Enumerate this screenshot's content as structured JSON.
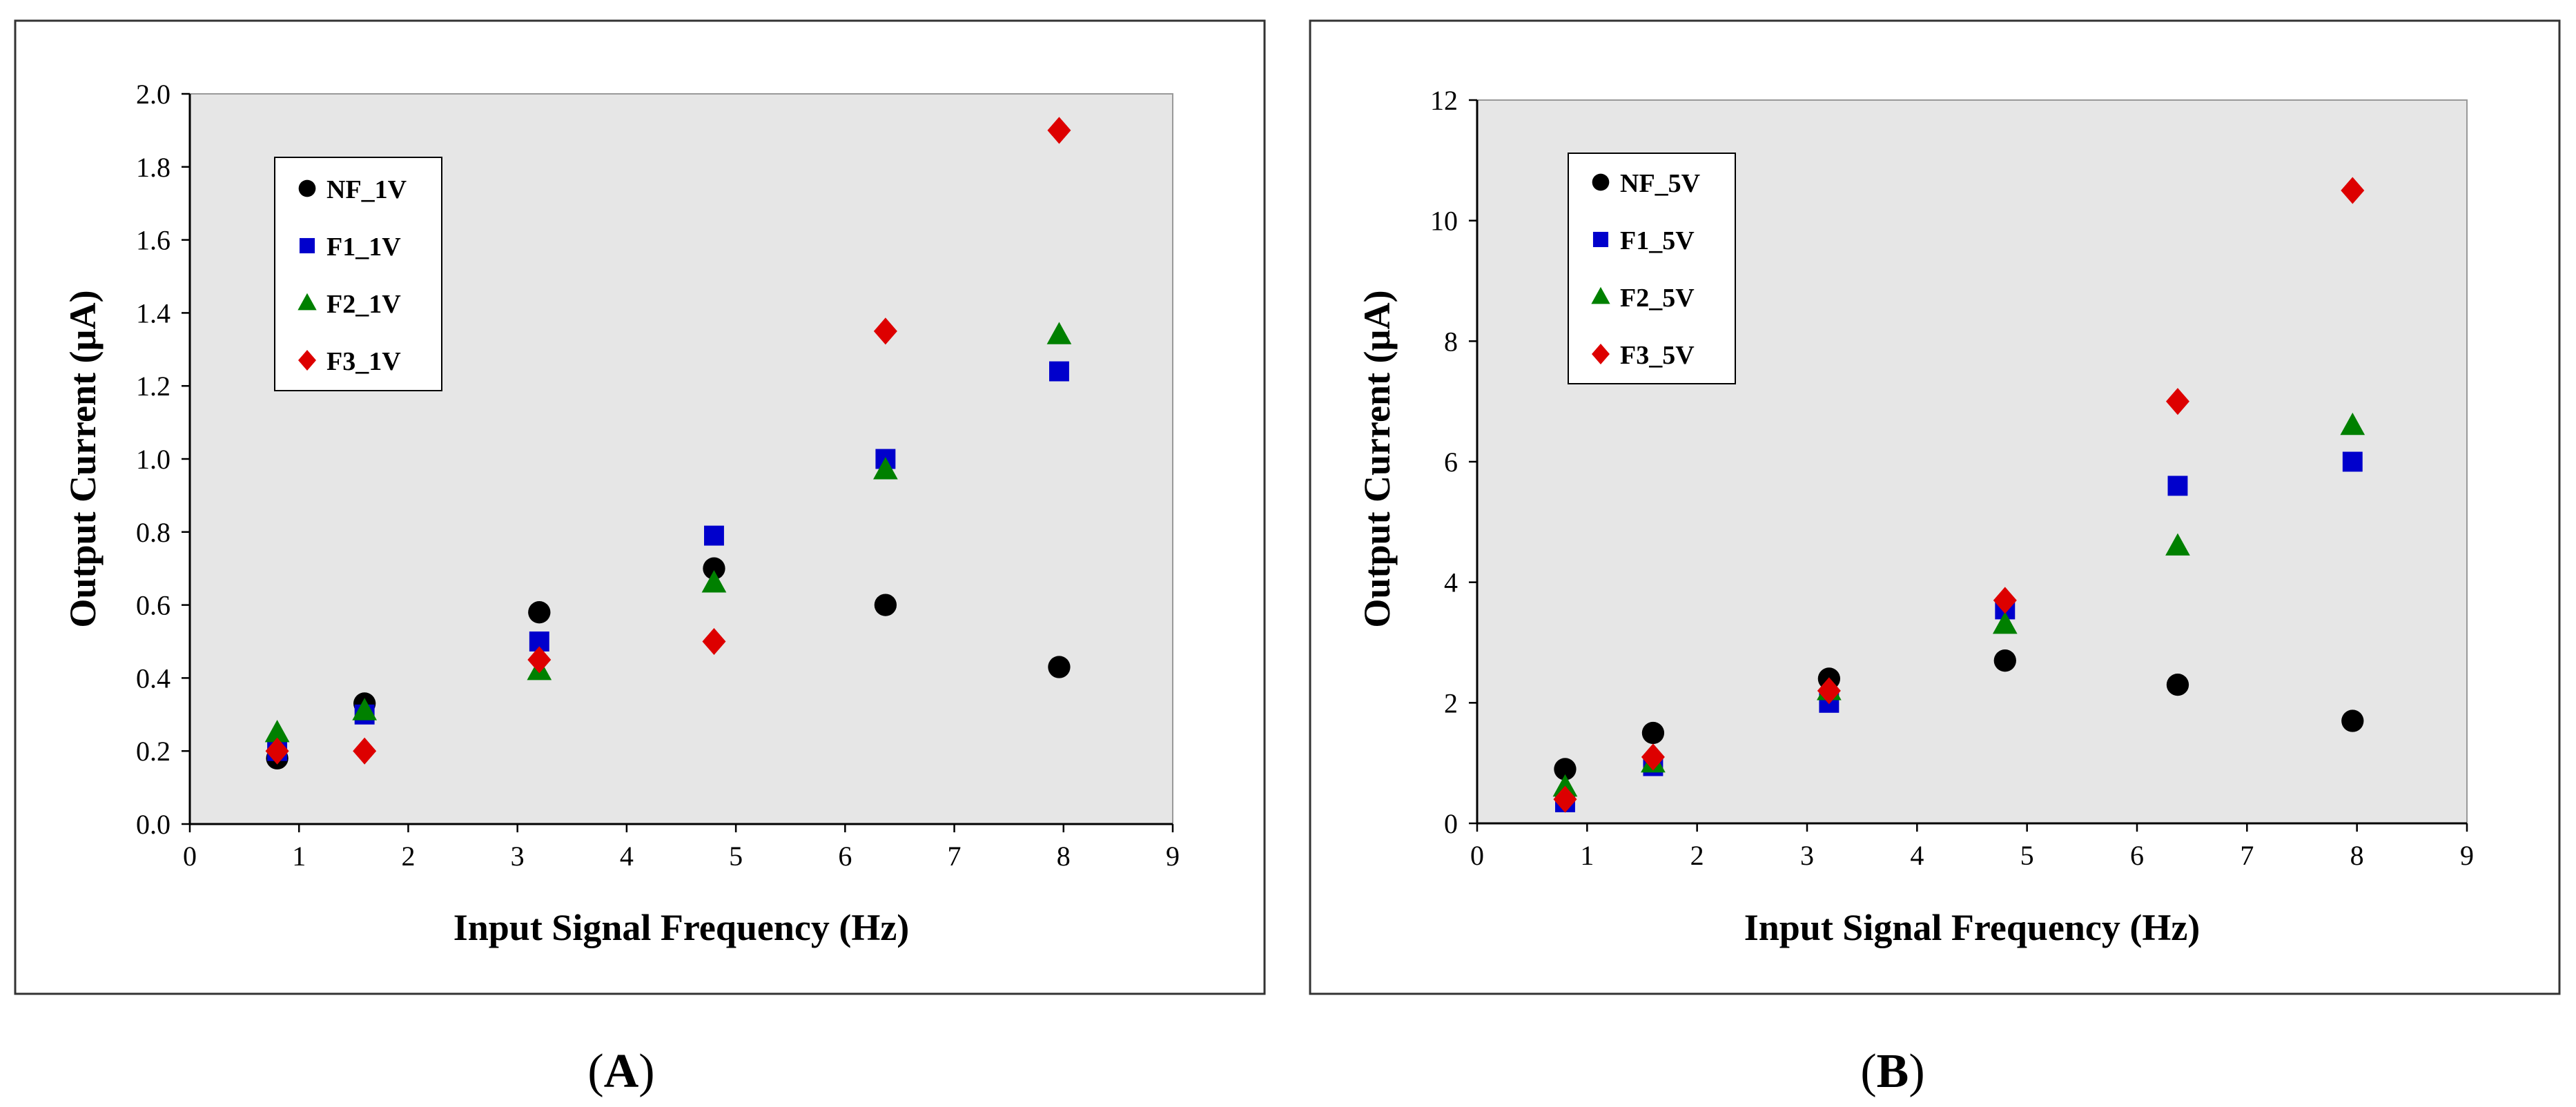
{
  "chart_data": [
    {
      "type": "scatter",
      "panel_label": "A",
      "xlabel": "Input Signal Frequency (Hz)",
      "ylabel": "Output Current (µA)",
      "xlim": [
        0,
        9
      ],
      "ylim": [
        0,
        2.0
      ],
      "xticks": [
        0,
        1,
        2,
        3,
        4,
        5,
        6,
        7,
        8,
        9
      ],
      "yticks": [
        0.0,
        0.2,
        0.4,
        0.6,
        0.8,
        1.0,
        1.2,
        1.4,
        1.6,
        1.8,
        2.0
      ],
      "ytick_labels": [
        "0.0",
        "0.2",
        "0.4",
        "0.6",
        "0.8",
        "1.0",
        "1.2",
        "1.4",
        "1.6",
        "1.8",
        "2.0"
      ],
      "legend_position": "top-left",
      "series": [
        {
          "name": "NF_1V",
          "marker": "circle",
          "color": "#000000",
          "x": [
            0.8,
            1.6,
            3.2,
            4.8,
            6.37,
            7.96
          ],
          "y": [
            0.18,
            0.33,
            0.58,
            0.7,
            0.6,
            0.43
          ]
        },
        {
          "name": "F1_1V",
          "marker": "square",
          "color": "#0000cc",
          "x": [
            0.8,
            1.6,
            3.2,
            4.8,
            6.37,
            7.96
          ],
          "y": [
            0.2,
            0.3,
            0.5,
            0.79,
            1.0,
            1.24
          ]
        },
        {
          "name": "F2_1V",
          "marker": "triangle",
          "color": "#008000",
          "x": [
            0.8,
            1.6,
            3.2,
            4.8,
            6.37,
            7.96
          ],
          "y": [
            0.25,
            0.31,
            0.42,
            0.66,
            0.97,
            1.34
          ]
        },
        {
          "name": "F3_1V",
          "marker": "diamond",
          "color": "#dd0000",
          "x": [
            0.8,
            1.6,
            3.2,
            4.8,
            6.37,
            7.96
          ],
          "y": [
            0.2,
            0.2,
            0.45,
            0.5,
            1.35,
            1.9
          ]
        }
      ]
    },
    {
      "type": "scatter",
      "panel_label": "B",
      "xlabel": "Input Signal Frequency (Hz)",
      "ylabel": "Output Current (µA)",
      "xlim": [
        0,
        9
      ],
      "ylim": [
        0,
        12
      ],
      "xticks": [
        0,
        1,
        2,
        3,
        4,
        5,
        6,
        7,
        8,
        9
      ],
      "yticks": [
        0,
        2,
        4,
        6,
        8,
        10,
        12
      ],
      "ytick_labels": [
        "0",
        "2",
        "4",
        "6",
        "8",
        "10",
        "12"
      ],
      "legend_position": "top-left",
      "series": [
        {
          "name": "NF_5V",
          "marker": "circle",
          "color": "#000000",
          "x": [
            0.8,
            1.6,
            3.2,
            4.8,
            6.37,
            7.96
          ],
          "y": [
            0.9,
            1.5,
            2.4,
            2.7,
            2.3,
            1.7
          ]
        },
        {
          "name": "F1_5V",
          "marker": "square",
          "color": "#0000cc",
          "x": [
            0.8,
            1.6,
            3.2,
            4.8,
            6.37,
            7.96
          ],
          "y": [
            0.35,
            0.95,
            2.0,
            3.55,
            5.6,
            6.0
          ]
        },
        {
          "name": "F2_5V",
          "marker": "triangle",
          "color": "#008000",
          "x": [
            0.8,
            1.6,
            3.2,
            4.8,
            6.37,
            7.96
          ],
          "y": [
            0.6,
            1.0,
            2.2,
            3.3,
            4.6,
            6.6
          ]
        },
        {
          "name": "F3_5V",
          "marker": "diamond",
          "color": "#dd0000",
          "x": [
            0.8,
            1.6,
            3.2,
            4.8,
            6.37,
            7.96
          ],
          "y": [
            0.4,
            1.1,
            2.2,
            3.7,
            7.0,
            10.5
          ]
        }
      ]
    }
  ]
}
